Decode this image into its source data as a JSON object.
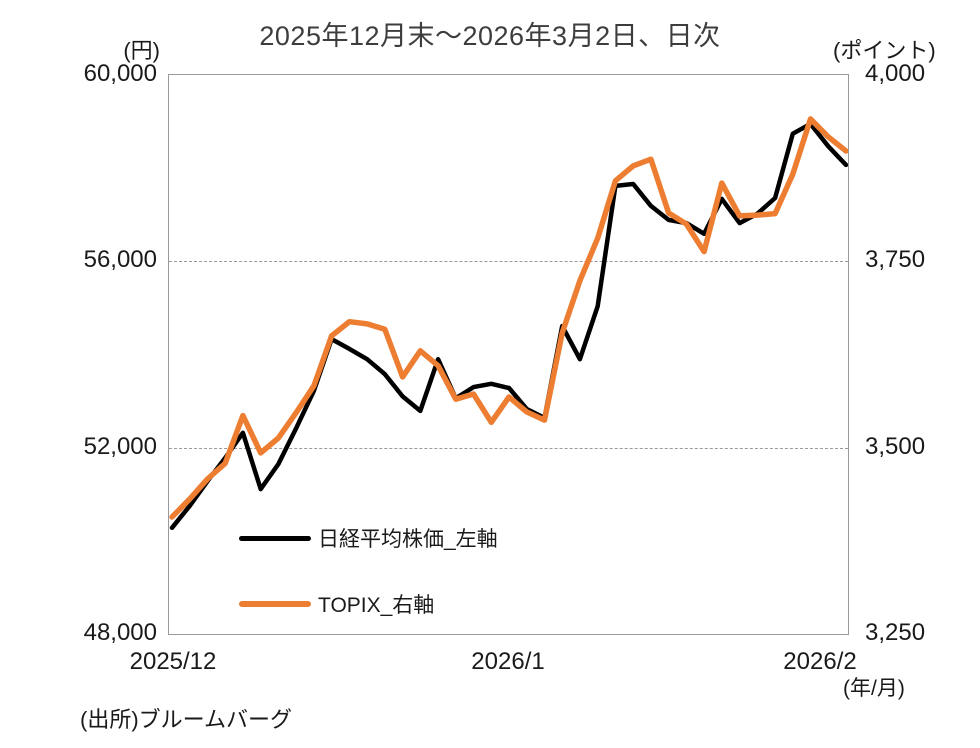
{
  "title": "2025年12月末～2026年3月2日、日次",
  "units": {
    "left": "(円)",
    "right": "(ポイント)",
    "x": "(年/月)"
  },
  "source": "(出所)ブルームバーグ",
  "legend": [
    {
      "label": "日経平均株価_左軸",
      "color": "#000000"
    },
    {
      "label": "TOPIX_右軸",
      "color": "#ED7D31"
    }
  ],
  "chart_data": {
    "type": "line",
    "title": "2025年12月末～2026年3月2日、日次",
    "x_description": "daily trading days, 2025/12/30 - 2026/3/2",
    "x_tick_labels": [
      "2025/12",
      "2026/1",
      "2026/2"
    ],
    "x_tick_indices": [
      0,
      19,
      37
    ],
    "grid": "horizontal dashed gridlines at interior ticks",
    "legend_position": "inside lower-left",
    "left_axis": {
      "unit": "(円)",
      "range": [
        48000,
        60000
      ],
      "ticks": [
        "60,000",
        "56,000",
        "52,000",
        "48,000"
      ]
    },
    "right_axis": {
      "unit": "(ポイント)",
      "range": [
        3250,
        4000
      ],
      "ticks": [
        "4,000",
        "3,750",
        "3,500",
        "3,250"
      ]
    },
    "series": [
      {
        "id": "nikkei-line",
        "name": "日経平均株価_左軸",
        "axis": "left",
        "color": "#000000",
        "stroke_width": 4.5,
        "values": [
          50280,
          50750,
          51280,
          51780,
          52320,
          51110,
          51650,
          52420,
          53220,
          54330,
          54120,
          53900,
          53580,
          53100,
          52790,
          53900,
          53060,
          53300,
          53370,
          53280,
          52830,
          52640,
          54610,
          53900,
          55040,
          57620,
          57660,
          57190,
          56890,
          56820,
          56590,
          57340,
          56820,
          57020,
          57360,
          58740,
          58950,
          58470,
          58070
        ]
      },
      {
        "id": "topix-line",
        "name": "TOPIX_右軸",
        "axis": "right",
        "color": "#ED7D31",
        "stroke_width": 5.5,
        "values": [
          3407,
          3431,
          3458,
          3479,
          3543,
          3493,
          3513,
          3547,
          3583,
          3650,
          3669,
          3666,
          3659,
          3595,
          3630,
          3610,
          3565,
          3572,
          3534,
          3568,
          3548,
          3537,
          3654,
          3724,
          3781,
          3858,
          3878,
          3887,
          3815,
          3800,
          3763,
          3855,
          3811,
          3812,
          3814,
          3867,
          3941,
          3917,
          3898
        ]
      }
    ]
  }
}
